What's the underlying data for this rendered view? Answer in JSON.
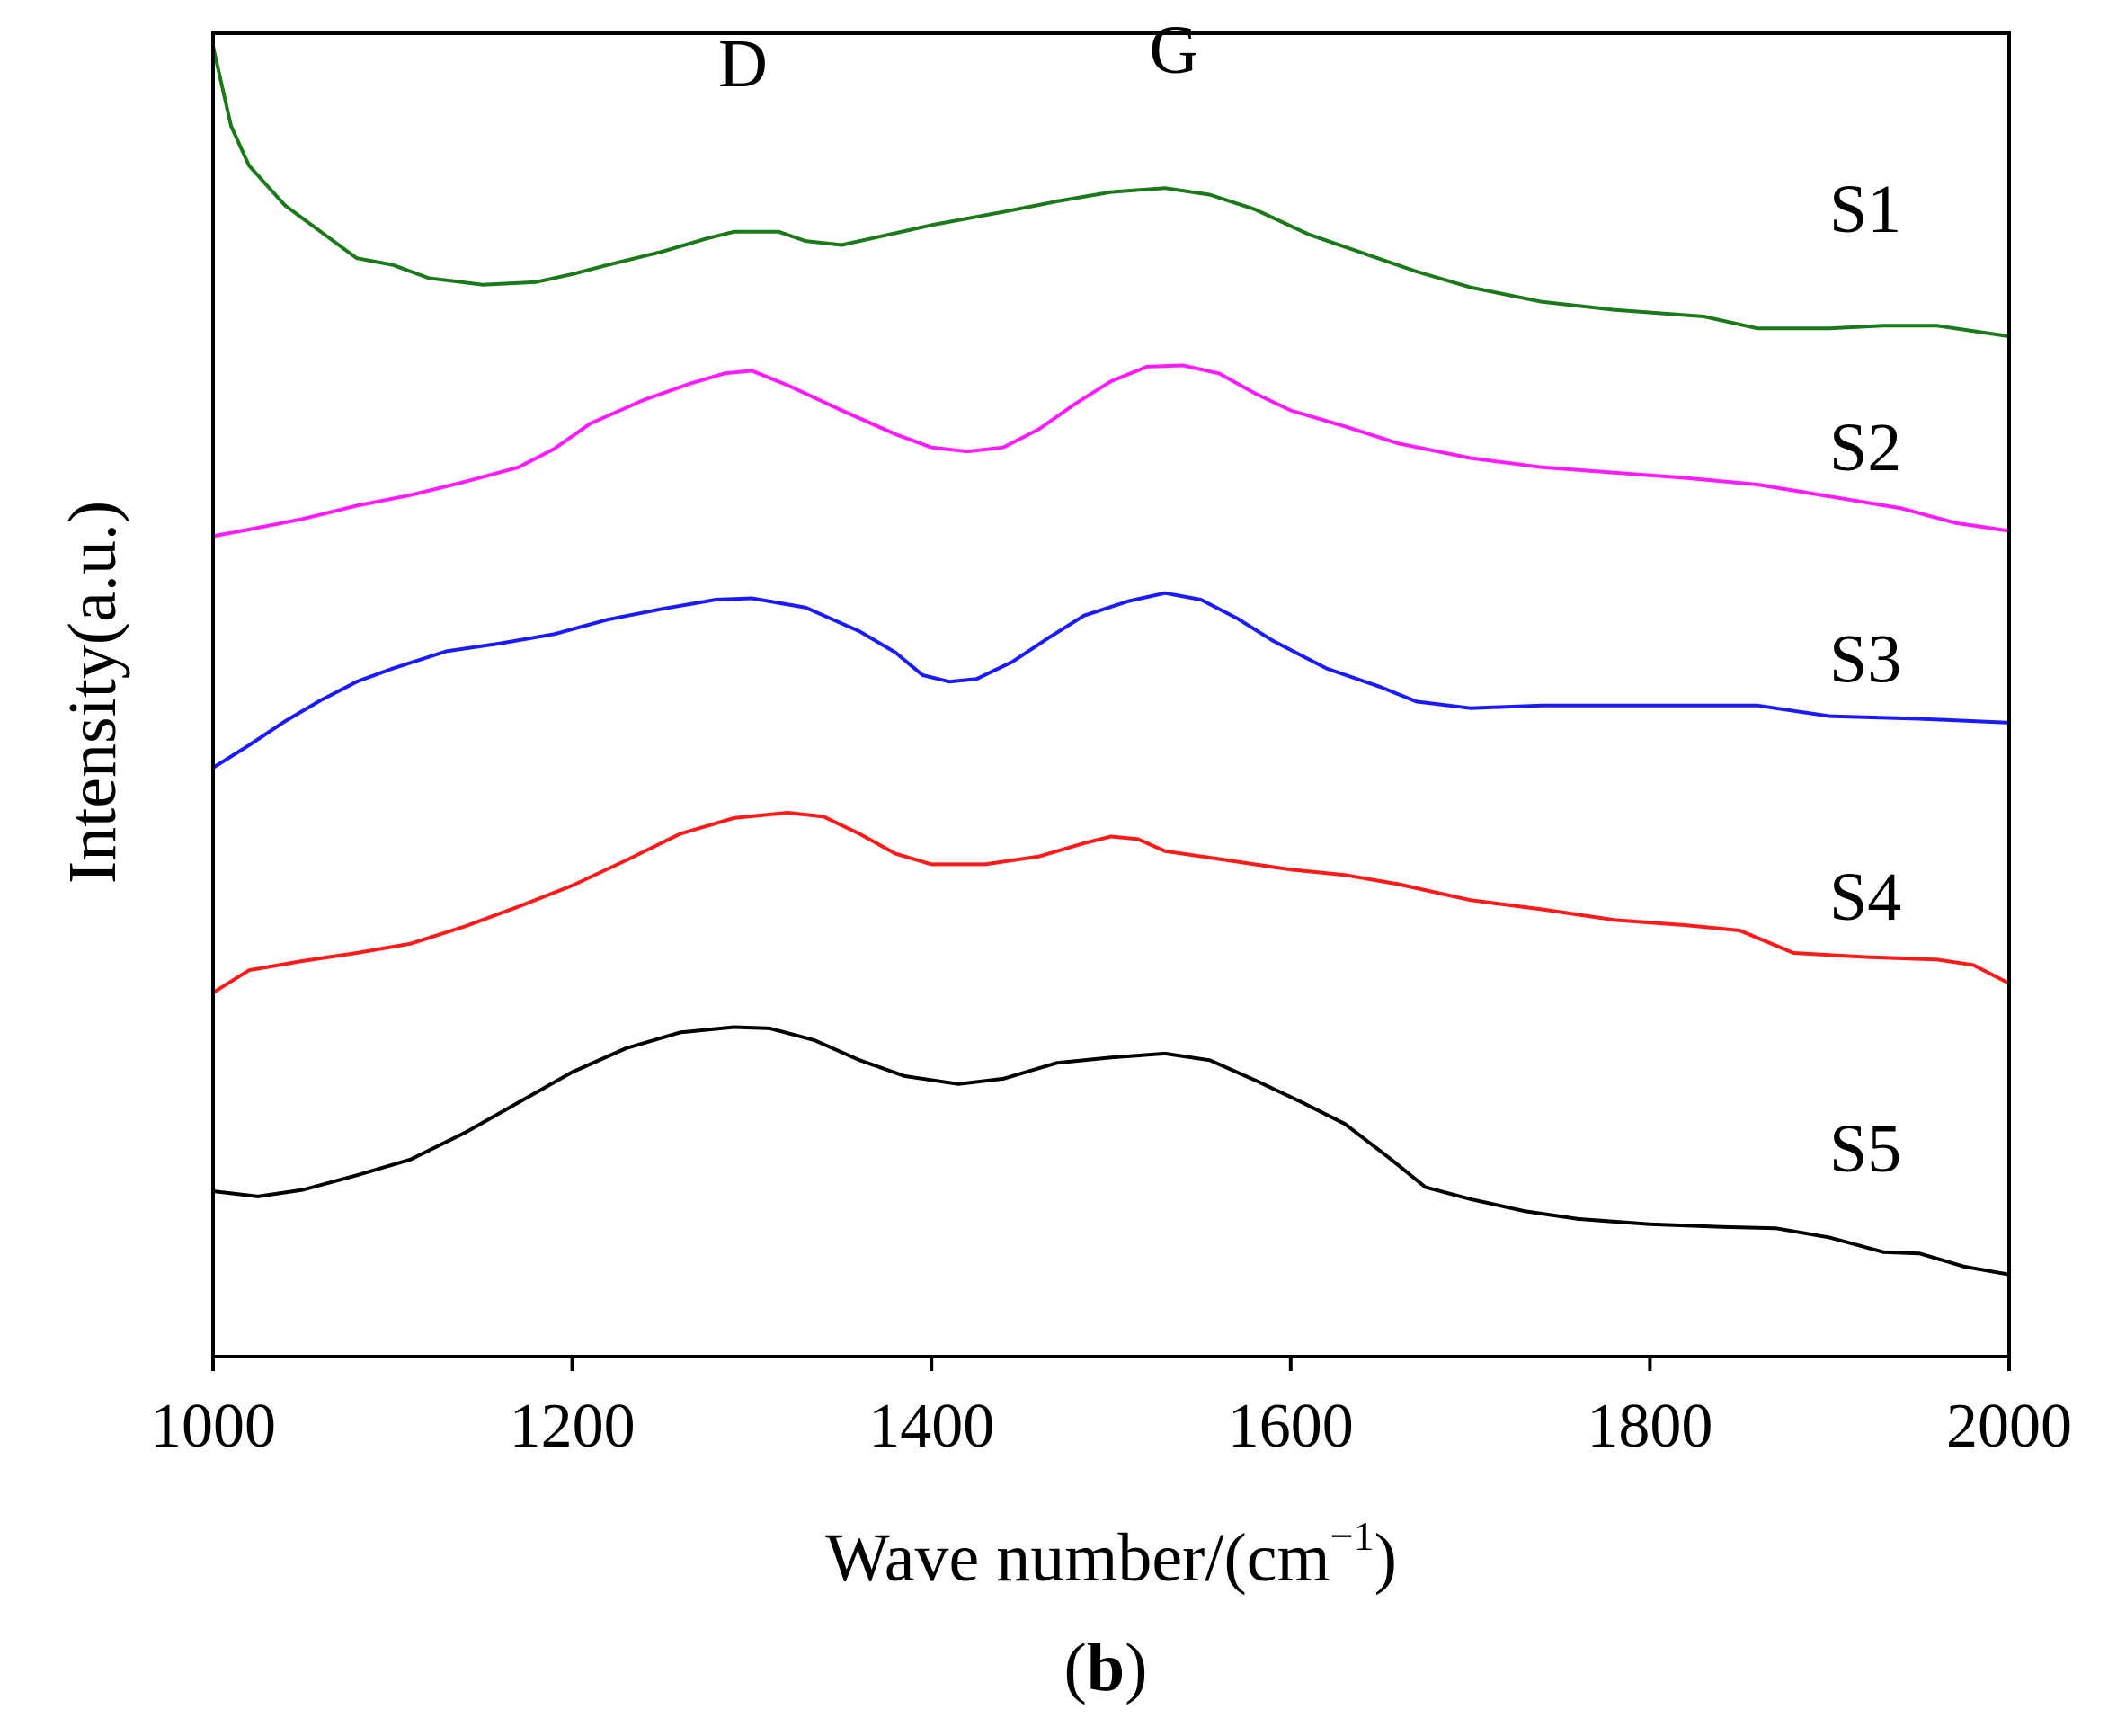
{
  "chart_data": {
    "type": "line",
    "panel_label": "b",
    "panel_label_open": "(",
    "panel_label_close": ")",
    "xlabel": "Wave number/(cm",
    "xlabel_superscript": "−1",
    "xlabel_close": ")",
    "ylabel": "Intensity(a.u.)",
    "xlim": [
      1000,
      2000
    ],
    "ylim": [
      0,
      100
    ],
    "x_ticks": [
      1000,
      1200,
      1400,
      1600,
      1800,
      2000
    ],
    "x_tick_labels": [
      "1000",
      "1200",
      "1400",
      "1600",
      "1800",
      "2000"
    ],
    "y_ticks_shown": false,
    "annotations": [
      {
        "text": "D",
        "x": 1295,
        "y": 96
      },
      {
        "text": "G",
        "x": 1535,
        "y": 97
      }
    ],
    "series": [
      {
        "name": "S1",
        "color": "#1a7a1a",
        "label_x": 1920,
        "label_y": 85,
        "points": [
          [
            1000,
            99
          ],
          [
            1010,
            93
          ],
          [
            1020,
            90
          ],
          [
            1040,
            87
          ],
          [
            1060,
            85
          ],
          [
            1080,
            83
          ],
          [
            1100,
            82.5
          ],
          [
            1120,
            81.5
          ],
          [
            1150,
            81
          ],
          [
            1180,
            81.2
          ],
          [
            1200,
            81.8
          ],
          [
            1220,
            82.5
          ],
          [
            1250,
            83.5
          ],
          [
            1275,
            84.5
          ],
          [
            1290,
            85
          ],
          [
            1315,
            85
          ],
          [
            1330,
            84.3
          ],
          [
            1350,
            84
          ],
          [
            1370,
            84.6
          ],
          [
            1400,
            85.5
          ],
          [
            1440,
            86.5
          ],
          [
            1470,
            87.3
          ],
          [
            1500,
            88
          ],
          [
            1530,
            88.3
          ],
          [
            1555,
            87.8
          ],
          [
            1580,
            86.7
          ],
          [
            1610,
            84.8
          ],
          [
            1640,
            83.4
          ],
          [
            1670,
            82
          ],
          [
            1700,
            80.8
          ],
          [
            1740,
            79.7
          ],
          [
            1780,
            79.1
          ],
          [
            1830,
            78.6
          ],
          [
            1860,
            77.7
          ],
          [
            1900,
            77.7
          ],
          [
            1930,
            77.9
          ],
          [
            1960,
            77.9
          ],
          [
            2000,
            77.1
          ]
        ]
      },
      {
        "name": "S2",
        "color": "#ff1aff",
        "label_x": 1920,
        "label_y": 67,
        "points": [
          [
            1000,
            62
          ],
          [
            1020,
            62.5
          ],
          [
            1050,
            63.3
          ],
          [
            1080,
            64.3
          ],
          [
            1110,
            65.1
          ],
          [
            1140,
            66.1
          ],
          [
            1170,
            67.2
          ],
          [
            1190,
            68.6
          ],
          [
            1210,
            70.5
          ],
          [
            1240,
            72.3
          ],
          [
            1265,
            73.5
          ],
          [
            1285,
            74.3
          ],
          [
            1300,
            74.5
          ],
          [
            1320,
            73.4
          ],
          [
            1350,
            71.5
          ],
          [
            1380,
            69.7
          ],
          [
            1400,
            68.7
          ],
          [
            1420,
            68.4
          ],
          [
            1440,
            68.7
          ],
          [
            1460,
            70.1
          ],
          [
            1480,
            72
          ],
          [
            1500,
            73.7
          ],
          [
            1520,
            74.8
          ],
          [
            1540,
            74.9
          ],
          [
            1560,
            74.3
          ],
          [
            1580,
            72.8
          ],
          [
            1600,
            71.5
          ],
          [
            1630,
            70.3
          ],
          [
            1660,
            69
          ],
          [
            1700,
            67.9
          ],
          [
            1740,
            67.2
          ],
          [
            1780,
            66.8
          ],
          [
            1820,
            66.4
          ],
          [
            1860,
            65.9
          ],
          [
            1900,
            65
          ],
          [
            1940,
            64.1
          ],
          [
            1970,
            63
          ],
          [
            2000,
            62.4
          ]
        ]
      },
      {
        "name": "S3",
        "color": "#1a1aff",
        "label_x": 1920,
        "label_y": 51,
        "points": [
          [
            1000,
            44.5
          ],
          [
            1020,
            46.2
          ],
          [
            1040,
            48
          ],
          [
            1060,
            49.6
          ],
          [
            1080,
            51
          ],
          [
            1100,
            52
          ],
          [
            1130,
            53.3
          ],
          [
            1160,
            53.9
          ],
          [
            1190,
            54.6
          ],
          [
            1220,
            55.7
          ],
          [
            1250,
            56.5
          ],
          [
            1280,
            57.2
          ],
          [
            1300,
            57.3
          ],
          [
            1330,
            56.6
          ],
          [
            1360,
            54.8
          ],
          [
            1380,
            53.2
          ],
          [
            1395,
            51.5
          ],
          [
            1410,
            51
          ],
          [
            1425,
            51.2
          ],
          [
            1445,
            52.5
          ],
          [
            1465,
            54.3
          ],
          [
            1485,
            56
          ],
          [
            1510,
            57.1
          ],
          [
            1530,
            57.7
          ],
          [
            1550,
            57.2
          ],
          [
            1570,
            55.8
          ],
          [
            1590,
            54.1
          ],
          [
            1620,
            52
          ],
          [
            1650,
            50.6
          ],
          [
            1670,
            49.5
          ],
          [
            1700,
            49
          ],
          [
            1740,
            49.2
          ],
          [
            1800,
            49.2
          ],
          [
            1860,
            49.2
          ],
          [
            1900,
            48.4
          ],
          [
            1950,
            48.2
          ],
          [
            2000,
            47.9
          ]
        ]
      },
      {
        "name": "S4",
        "color": "#ff1a1a",
        "label_x": 1920,
        "label_y": 33,
        "points": [
          [
            1000,
            27.5
          ],
          [
            1020,
            29.2
          ],
          [
            1050,
            29.9
          ],
          [
            1080,
            30.5
          ],
          [
            1110,
            31.2
          ],
          [
            1140,
            32.5
          ],
          [
            1170,
            34
          ],
          [
            1200,
            35.6
          ],
          [
            1230,
            37.5
          ],
          [
            1260,
            39.5
          ],
          [
            1290,
            40.7
          ],
          [
            1320,
            41.1
          ],
          [
            1340,
            40.8
          ],
          [
            1360,
            39.5
          ],
          [
            1380,
            38
          ],
          [
            1400,
            37.2
          ],
          [
            1430,
            37.2
          ],
          [
            1460,
            37.8
          ],
          [
            1485,
            38.8
          ],
          [
            1500,
            39.3
          ],
          [
            1515,
            39.1
          ],
          [
            1530,
            38.2
          ],
          [
            1560,
            37.6
          ],
          [
            1600,
            36.8
          ],
          [
            1630,
            36.4
          ],
          [
            1660,
            35.7
          ],
          [
            1700,
            34.5
          ],
          [
            1740,
            33.8
          ],
          [
            1780,
            33
          ],
          [
            1820,
            32.6
          ],
          [
            1850,
            32.2
          ],
          [
            1880,
            30.5
          ],
          [
            1920,
            30.2
          ],
          [
            1960,
            30
          ],
          [
            1980,
            29.6
          ],
          [
            2000,
            28.2
          ]
        ]
      },
      {
        "name": "S5",
        "color": "#000000",
        "label_x": 1920,
        "label_y": 14,
        "points": [
          [
            1000,
            12.5
          ],
          [
            1025,
            12.1
          ],
          [
            1050,
            12.6
          ],
          [
            1080,
            13.7
          ],
          [
            1110,
            14.9
          ],
          [
            1140,
            16.9
          ],
          [
            1170,
            19.2
          ],
          [
            1200,
            21.5
          ],
          [
            1230,
            23.3
          ],
          [
            1260,
            24.5
          ],
          [
            1290,
            24.9
          ],
          [
            1310,
            24.8
          ],
          [
            1335,
            23.9
          ],
          [
            1360,
            22.4
          ],
          [
            1385,
            21.2
          ],
          [
            1415,
            20.6
          ],
          [
            1440,
            21
          ],
          [
            1470,
            22.2
          ],
          [
            1500,
            22.6
          ],
          [
            1530,
            22.9
          ],
          [
            1555,
            22.4
          ],
          [
            1580,
            20.9
          ],
          [
            1605,
            19.3
          ],
          [
            1630,
            17.6
          ],
          [
            1655,
            15
          ],
          [
            1675,
            12.8
          ],
          [
            1700,
            11.9
          ],
          [
            1730,
            11
          ],
          [
            1760,
            10.4
          ],
          [
            1800,
            10
          ],
          [
            1840,
            9.8
          ],
          [
            1870,
            9.7
          ],
          [
            1900,
            9
          ],
          [
            1930,
            7.9
          ],
          [
            1950,
            7.8
          ],
          [
            1975,
            6.8
          ],
          [
            2000,
            6.2
          ]
        ]
      }
    ]
  }
}
